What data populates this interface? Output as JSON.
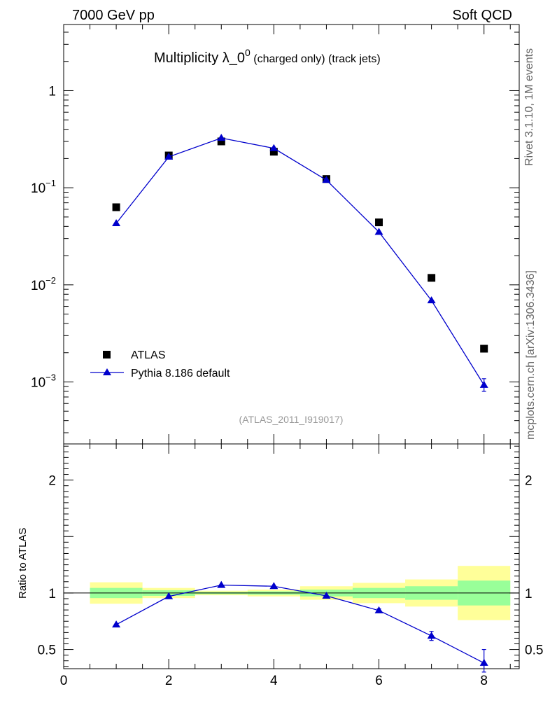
{
  "header": {
    "left": "7000 GeV pp",
    "right": "Soft QCD"
  },
  "side_labels": {
    "rivet": "Rivet 3.1.10,  1M events",
    "mcplots": "mcplots.cern.ch [arXiv:1306.3436]"
  },
  "chart_data": {
    "type": "scatter",
    "title_main": "Multiplicity λ_0",
    "title_sup": "0",
    "title_small": " (charged only) (track jets)",
    "reference": "(ATLAS_2011_I919017)",
    "legend": [
      {
        "name": "ATLAS",
        "marker": "square",
        "color": "#000000"
      },
      {
        "name": "Pythia 8.186 default",
        "marker": "triangle",
        "color": "#0000cc"
      }
    ],
    "x": [
      1,
      2,
      3,
      4,
      5,
      6,
      7,
      8
    ],
    "xlim": [
      0,
      8.67
    ],
    "xticks": [
      "0",
      "2",
      "4",
      "6",
      "8"
    ],
    "xtick_values": [
      0,
      2,
      4,
      6,
      8
    ],
    "main": {
      "yscale": "log",
      "ylim": [
        0.00023,
        4.8
      ],
      "ytick_values": [
        1,
        0.1,
        0.01,
        0.001
      ],
      "ytick_labels": [
        {
          "base": "1",
          "exp": ""
        },
        {
          "base": "10",
          "exp": "−1"
        },
        {
          "base": "10",
          "exp": "−2"
        },
        {
          "base": "10",
          "exp": "−3"
        }
      ],
      "series": [
        {
          "name": "ATLAS",
          "values": [
            0.063,
            0.215,
            0.3,
            0.235,
            0.123,
            0.044,
            0.0118,
            0.0022
          ]
        },
        {
          "name": "Pythia 8.186 default",
          "values": [
            0.043,
            0.208,
            0.325,
            0.255,
            0.12,
            0.035,
            0.0069,
            0.00093
          ],
          "err_low": [
            0,
            0,
            0,
            0,
            0,
            0,
            0,
            0.00013
          ],
          "err_high": [
            0,
            0,
            0,
            0,
            0,
            0,
            0,
            0.00015
          ]
        }
      ]
    },
    "ratio": {
      "ylabel": "Ratio to ATLAS",
      "ylim": [
        0.33,
        2.32
      ],
      "ytick_values": [
        0.5,
        1,
        2
      ],
      "ytick_labels": [
        "0.5",
        "1",
        "2"
      ],
      "bands": [
        {
          "x0": 0.5,
          "x1": 1.5,
          "stat": [
            0.955,
            1.045
          ],
          "total": [
            0.905,
            1.095
          ]
        },
        {
          "x0": 1.5,
          "x1": 2.5,
          "stat": [
            0.975,
            1.025
          ],
          "total": [
            0.955,
            1.045
          ]
        },
        {
          "x0": 2.5,
          "x1": 3.5,
          "stat": [
            0.99,
            1.01
          ],
          "total": [
            0.98,
            1.02
          ]
        },
        {
          "x0": 3.5,
          "x1": 4.5,
          "stat": [
            0.985,
            1.015
          ],
          "total": [
            0.97,
            1.03
          ]
        },
        {
          "x0": 4.5,
          "x1": 5.5,
          "stat": [
            0.97,
            1.03
          ],
          "total": [
            0.94,
            1.06
          ]
        },
        {
          "x0": 5.5,
          "x1": 6.5,
          "stat": [
            0.955,
            1.045
          ],
          "total": [
            0.91,
            1.09
          ]
        },
        {
          "x0": 6.5,
          "x1": 7.5,
          "stat": [
            0.94,
            1.06
          ],
          "total": [
            0.88,
            1.12
          ]
        },
        {
          "x0": 7.5,
          "x1": 8.5,
          "stat": [
            0.89,
            1.11
          ],
          "total": [
            0.76,
            1.24
          ]
        }
      ],
      "series": [
        {
          "name": "Pythia 8.186 default",
          "values": [
            0.72,
            0.97,
            1.07,
            1.06,
            0.975,
            0.845,
            0.62,
            0.38
          ],
          "err_low": [
            0,
            0,
            0,
            0,
            0,
            0.015,
            0.04,
            0.08
          ],
          "err_high": [
            0,
            0,
            0,
            0,
            0,
            0.015,
            0.04,
            0.12
          ]
        }
      ]
    },
    "colors": {
      "mc": "#0000cc",
      "data": "#000000",
      "stat_band": "#99ff99",
      "total_band": "#ffff99"
    }
  }
}
